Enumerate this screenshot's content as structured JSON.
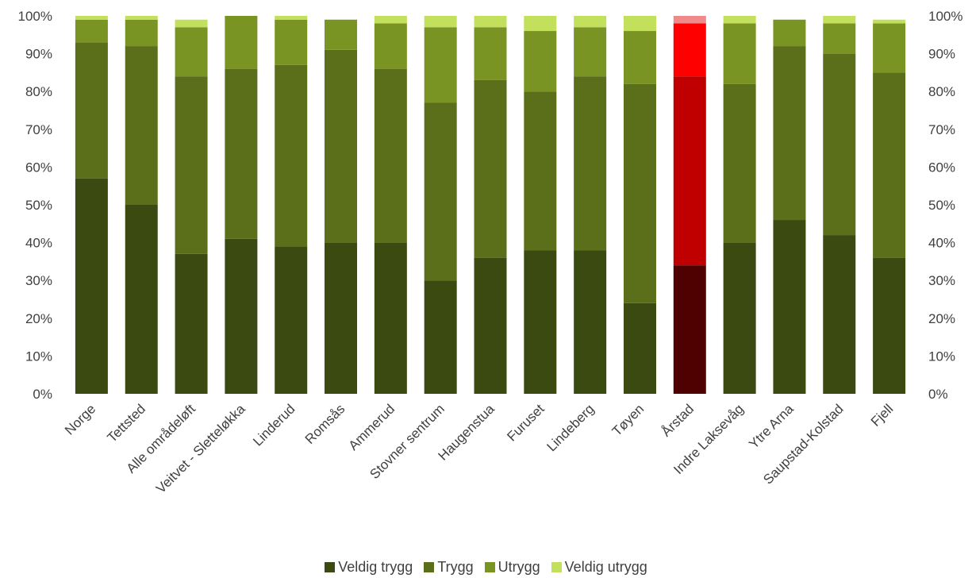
{
  "chart_data": {
    "type": "bar",
    "stacked": true,
    "title": "",
    "xlabel": "",
    "ylabel": "",
    "ylim": [
      0,
      100
    ],
    "y_ticks": [
      "0%",
      "10%",
      "20%",
      "30%",
      "40%",
      "50%",
      "60%",
      "70%",
      "80%",
      "90%",
      "100%"
    ],
    "secondary_axis": true,
    "grid": false,
    "legend_position": "bottom",
    "categories": [
      "Norge",
      "Tettsted",
      "Alle områdeløft",
      "Veitvet - Sletteløkka",
      "Linderud",
      "Romsås",
      "Ammerud",
      "Stovner sentrum",
      "Haugenstua",
      "Furuset",
      "Lindeberg",
      "Tøyen",
      "Årstad",
      "Indre Laksevåg",
      "Ytre Arna",
      "Saupstad-Kolstad",
      "Fjell"
    ],
    "series": [
      {
        "name": "Veldig trygg",
        "color": "#3b4a10",
        "values": [
          57,
          50,
          37,
          41,
          39,
          40,
          40,
          30,
          36,
          38,
          38,
          24,
          34,
          40,
          46,
          42,
          36
        ]
      },
      {
        "name": "Trygg",
        "color": "#5b6e1a",
        "values": [
          36,
          42,
          47,
          45,
          48,
          51,
          46,
          47,
          47,
          42,
          46,
          58,
          50,
          42,
          46,
          48,
          49
        ]
      },
      {
        "name": "Utrygg",
        "color": "#7a9423",
        "values": [
          6,
          7,
          13,
          14,
          12,
          8,
          12,
          20,
          14,
          16,
          13,
          14,
          14,
          16,
          7,
          8,
          13
        ]
      },
      {
        "name": "Veldig utrygg",
        "color": "#c3e05c",
        "values": [
          1,
          1,
          2,
          0,
          1,
          0,
          2,
          3,
          3,
          4,
          3,
          4,
          2,
          2,
          0,
          2,
          1
        ]
      }
    ],
    "highlight": {
      "category": "Årstad",
      "colors": [
        "#4f0000",
        "#c00000",
        "#ff0000",
        "#f08a8a"
      ]
    }
  }
}
